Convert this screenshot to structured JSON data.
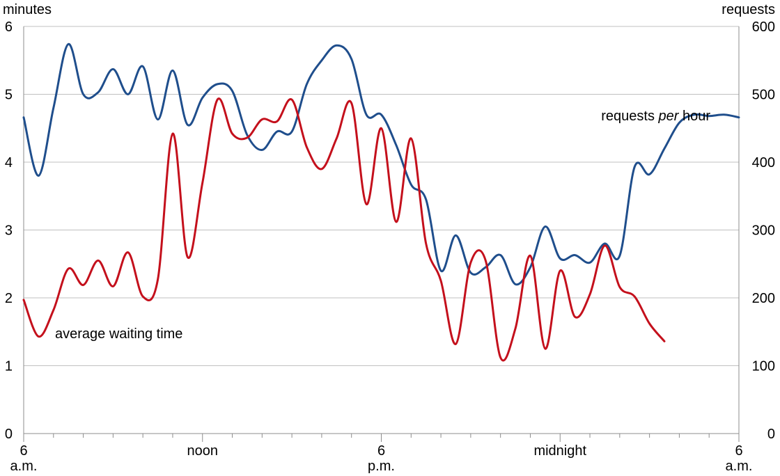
{
  "chart_data": {
    "type": "line",
    "left_axis": {
      "unit_label": "minutes",
      "range": [
        0,
        6
      ],
      "ticks": [
        "0",
        "1",
        "2",
        "3",
        "4",
        "5",
        "6"
      ]
    },
    "right_axis": {
      "unit_label": "requests",
      "range": [
        0,
        600
      ],
      "ticks": [
        "0",
        "100",
        "200",
        "300",
        "400",
        "500",
        "600"
      ]
    },
    "x_axis": {
      "range_hours": [
        6,
        30
      ],
      "labels": [
        {
          "hour": 6,
          "line1": "6",
          "line2": "a.m."
        },
        {
          "hour": 12,
          "line1": "noon",
          "line2": ""
        },
        {
          "hour": 18,
          "line1": "6",
          "line2": "p.m."
        },
        {
          "hour": 24,
          "line1": "midnight",
          "line2": ""
        },
        {
          "hour": 30,
          "line1": "6",
          "line2": "a.m."
        }
      ]
    },
    "grid": true,
    "series": [
      {
        "name": "requests per hour",
        "name_parts": [
          "requests ",
          "per",
          " hour"
        ],
        "axis": "right",
        "color": "#1f4e8c",
        "points": [
          [
            6.0,
            466
          ],
          [
            6.5,
            380
          ],
          [
            7.0,
            480
          ],
          [
            7.5,
            574
          ],
          [
            8.0,
            500
          ],
          [
            8.5,
            503
          ],
          [
            9.0,
            537
          ],
          [
            9.5,
            500
          ],
          [
            10.0,
            541
          ],
          [
            10.5,
            463
          ],
          [
            11.0,
            535
          ],
          [
            11.5,
            455
          ],
          [
            12.0,
            495
          ],
          [
            12.5,
            515
          ],
          [
            13.0,
            505
          ],
          [
            13.5,
            440
          ],
          [
            14.0,
            418
          ],
          [
            14.5,
            445
          ],
          [
            15.0,
            445
          ],
          [
            15.5,
            515
          ],
          [
            16.0,
            550
          ],
          [
            16.5,
            572
          ],
          [
            17.0,
            552
          ],
          [
            17.5,
            470
          ],
          [
            18.0,
            470
          ],
          [
            18.5,
            425
          ],
          [
            19.0,
            367
          ],
          [
            19.5,
            345
          ],
          [
            20.0,
            240
          ],
          [
            20.5,
            292
          ],
          [
            21.0,
            237
          ],
          [
            21.5,
            245
          ],
          [
            22.0,
            263
          ],
          [
            22.5,
            220
          ],
          [
            23.0,
            245
          ],
          [
            23.5,
            305
          ],
          [
            24.0,
            258
          ],
          [
            24.5,
            263
          ],
          [
            25.0,
            252
          ],
          [
            25.5,
            280
          ],
          [
            26.0,
            262
          ],
          [
            26.5,
            393
          ],
          [
            27.0,
            382
          ],
          [
            27.5,
            420
          ],
          [
            28.0,
            458
          ],
          [
            28.5,
            470
          ],
          [
            29.0,
            468
          ],
          [
            29.5,
            470
          ],
          [
            30.0,
            466
          ]
        ]
      },
      {
        "name": "average waiting time",
        "axis": "left",
        "color": "#c4101c",
        "points": [
          [
            6.0,
            1.97
          ],
          [
            6.5,
            1.43
          ],
          [
            7.0,
            1.82
          ],
          [
            7.5,
            2.43
          ],
          [
            8.0,
            2.19
          ],
          [
            8.5,
            2.55
          ],
          [
            9.0,
            2.17
          ],
          [
            9.5,
            2.67
          ],
          [
            10.0,
            2.02
          ],
          [
            10.5,
            2.27
          ],
          [
            11.0,
            4.42
          ],
          [
            11.5,
            2.6
          ],
          [
            12.0,
            3.7
          ],
          [
            12.5,
            4.92
          ],
          [
            13.0,
            4.42
          ],
          [
            13.5,
            4.36
          ],
          [
            14.0,
            4.63
          ],
          [
            14.5,
            4.6
          ],
          [
            15.0,
            4.92
          ],
          [
            15.5,
            4.22
          ],
          [
            16.0,
            3.9
          ],
          [
            16.5,
            4.35
          ],
          [
            17.0,
            4.87
          ],
          [
            17.5,
            3.38
          ],
          [
            18.0,
            4.5
          ],
          [
            18.5,
            3.12
          ],
          [
            19.0,
            4.35
          ],
          [
            19.5,
            2.8
          ],
          [
            20.0,
            2.25
          ],
          [
            20.5,
            1.32
          ],
          [
            21.0,
            2.52
          ],
          [
            21.5,
            2.55
          ],
          [
            22.0,
            1.12
          ],
          [
            22.5,
            1.55
          ],
          [
            23.0,
            2.62
          ],
          [
            23.5,
            1.25
          ],
          [
            24.0,
            2.4
          ],
          [
            24.5,
            1.72
          ],
          [
            25.0,
            2.05
          ],
          [
            25.5,
            2.77
          ],
          [
            26.0,
            2.16
          ],
          [
            26.5,
            2.02
          ],
          [
            27.0,
            1.62
          ],
          [
            27.5,
            1.36
          ]
        ]
      }
    ]
  }
}
